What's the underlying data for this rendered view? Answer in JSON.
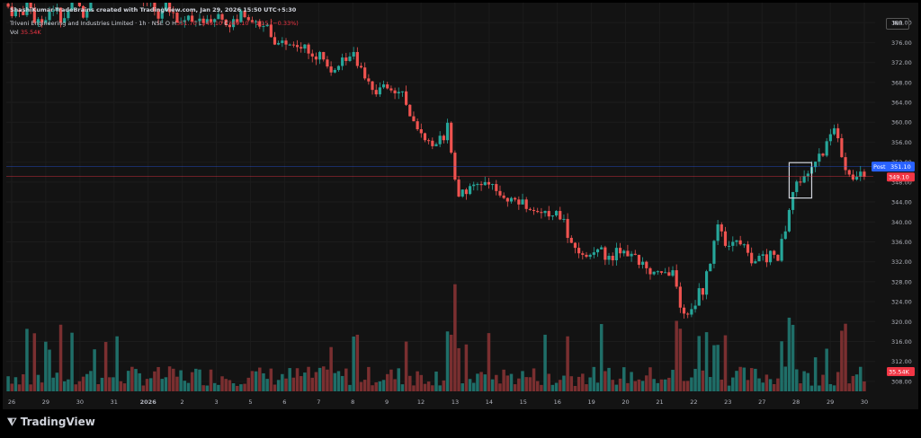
{
  "credit": "ShashiKumar-TradeBrains created with TradingView.com, Jan 29, 2026 15:50 UTC+5:30",
  "legend": {
    "symbol": "Triveni Engineering and Industries Limited · 1h · NSE",
    "open_label": "O",
    "open": "",
    "high_label": "H",
    "high": "351.70",
    "low_label": "L",
    "low": "349.10",
    "close_label": "C",
    "close": "349.10",
    "change": "−1.15 (−0.33%)",
    "vol_label": "Vol",
    "vol_value": "35.54K"
  },
  "currency": "INR",
  "tradingview_label": "TradingView",
  "colors": {
    "up": "#26a69a",
    "down": "#ef5350",
    "up_volume": "#1f6e68",
    "down_volume": "#7a2f30",
    "background": "#131313",
    "axis_text": "#b2b5be",
    "post_label": "#2962ff",
    "last_price_label": "#f23645",
    "highlight_box": "#d1d4dc"
  },
  "chart_data": {
    "type": "candlestick",
    "price_ticks": [
      308,
      312,
      316,
      320,
      324,
      328,
      332,
      336,
      340,
      344,
      348,
      352,
      356,
      360,
      364,
      368,
      372,
      376,
      380
    ],
    "ylim": [
      306,
      384
    ],
    "x_tick_labels": [
      "26",
      "29",
      "30",
      "31",
      "2026",
      "2",
      "3",
      "5",
      "6",
      "7",
      "8",
      "9",
      "12",
      "13",
      "14",
      "15",
      "16",
      "19",
      "20",
      "21",
      "22",
      "23",
      "27",
      "28",
      "29",
      "30"
    ],
    "post_price": {
      "label": "Post",
      "value": 351.1,
      "value_text": "351.10"
    },
    "last_price": {
      "value": 349.1,
      "value_text": "349.10"
    },
    "volume_label": "35.54K",
    "highlight": {
      "from_candle": 209,
      "to_candle": 213
    },
    "closes": [
      383.2,
      381.3,
      382.5,
      382.2,
      381.5,
      385.2,
      382.9,
      380.0,
      380.7,
      380.0,
      380.5,
      382.2,
      382.4,
      383.0,
      380.0,
      380.9,
      382.5,
      385.6,
      384.3,
      383.3,
      381.0,
      382.4,
      384.5,
      388.5,
      387.5,
      389.7,
      387.7,
      386.7,
      387.0,
      389.9,
      388.7,
      386.5,
      386.8,
      385.5,
      385.5,
      386.3,
      384.3,
      384.1,
      384.2,
      382.3,
      380.8,
      382.3,
      384.0,
      382.1,
      382.0,
      380.0,
      380.1,
      380.5,
      381.4,
      380.2,
      380.3,
      380.8,
      379.9,
      380.7,
      380.1,
      380.7,
      381.7,
      380.6,
      379.5,
      379.1,
      380.7,
      380.1,
      382.4,
      381.1,
      380.5,
      380.1,
      380.3,
      379.2,
      379.3,
      379.6,
      377.1,
      375.6,
      375.9,
      376.4,
      375.6,
      375.6,
      375.5,
      375.1,
      374.8,
      375.6,
      373.8,
      373.2,
      372.6,
      374.1,
      372.6,
      371.2,
      370.0,
      370.5,
      371.3,
      373.0,
      372.3,
      373.2,
      374.1,
      371.3,
      371.0,
      368.8,
      368.2,
      366.5,
      365.6,
      367.0,
      367.6,
      366.8,
      366.4,
      365.8,
      366.1,
      366.2,
      363.5,
      361.2,
      360.2,
      358.6,
      357.8,
      356.4,
      356.3,
      355.2,
      355.6,
      357.3,
      356.4,
      359.9,
      353.9,
      348.5,
      345.1,
      346.5,
      345.6,
      347.2,
      347.5,
      347.6,
      347.4,
      348.0,
      347.5,
      347.6,
      346.2,
      345.3,
      344.8,
      344.1,
      344.8,
      344.5,
      343.5,
      344.5,
      342.6,
      342.4,
      342.2,
      342.0,
      341.8,
      342.2,
      341.1,
      341.3,
      342.2,
      340.5,
      340.6,
      336.8,
      335.8,
      334.8,
      333.7,
      333.4,
      333.0,
      333.4,
      333.9,
      334.5,
      334.9,
      332.4,
      333.2,
      332.3,
      334.8,
      333.7,
      334.2,
      333.1,
      333.6,
      333.4,
      331.4,
      332.0,
      330.7,
      329.5,
      330.0,
      330.1,
      329.8,
      329.9,
      329.2,
      330.3,
      327.0,
      322.8,
      321.6,
      321.4,
      322.5,
      323.2,
      326.7,
      325.4,
      330.1,
      331.6,
      336.2,
      339.5,
      338.1,
      335.2,
      335.2,
      336.0,
      336.3,
      335.5,
      335.5,
      333.8,
      331.7,
      332.1,
      333.2,
      333.5,
      331.9,
      334.2,
      333.4,
      332.2,
      336.6,
      338.1,
      342.4,
      346.0,
      348.1,
      347.9,
      349.2,
      349.7,
      351.0,
      352.1,
      353.7,
      353.3,
      356.2,
      357.6,
      358.8,
      356.8,
      353.0,
      350.4,
      349.5,
      348.5,
      349.1,
      350.1,
      349.1
    ]
  }
}
